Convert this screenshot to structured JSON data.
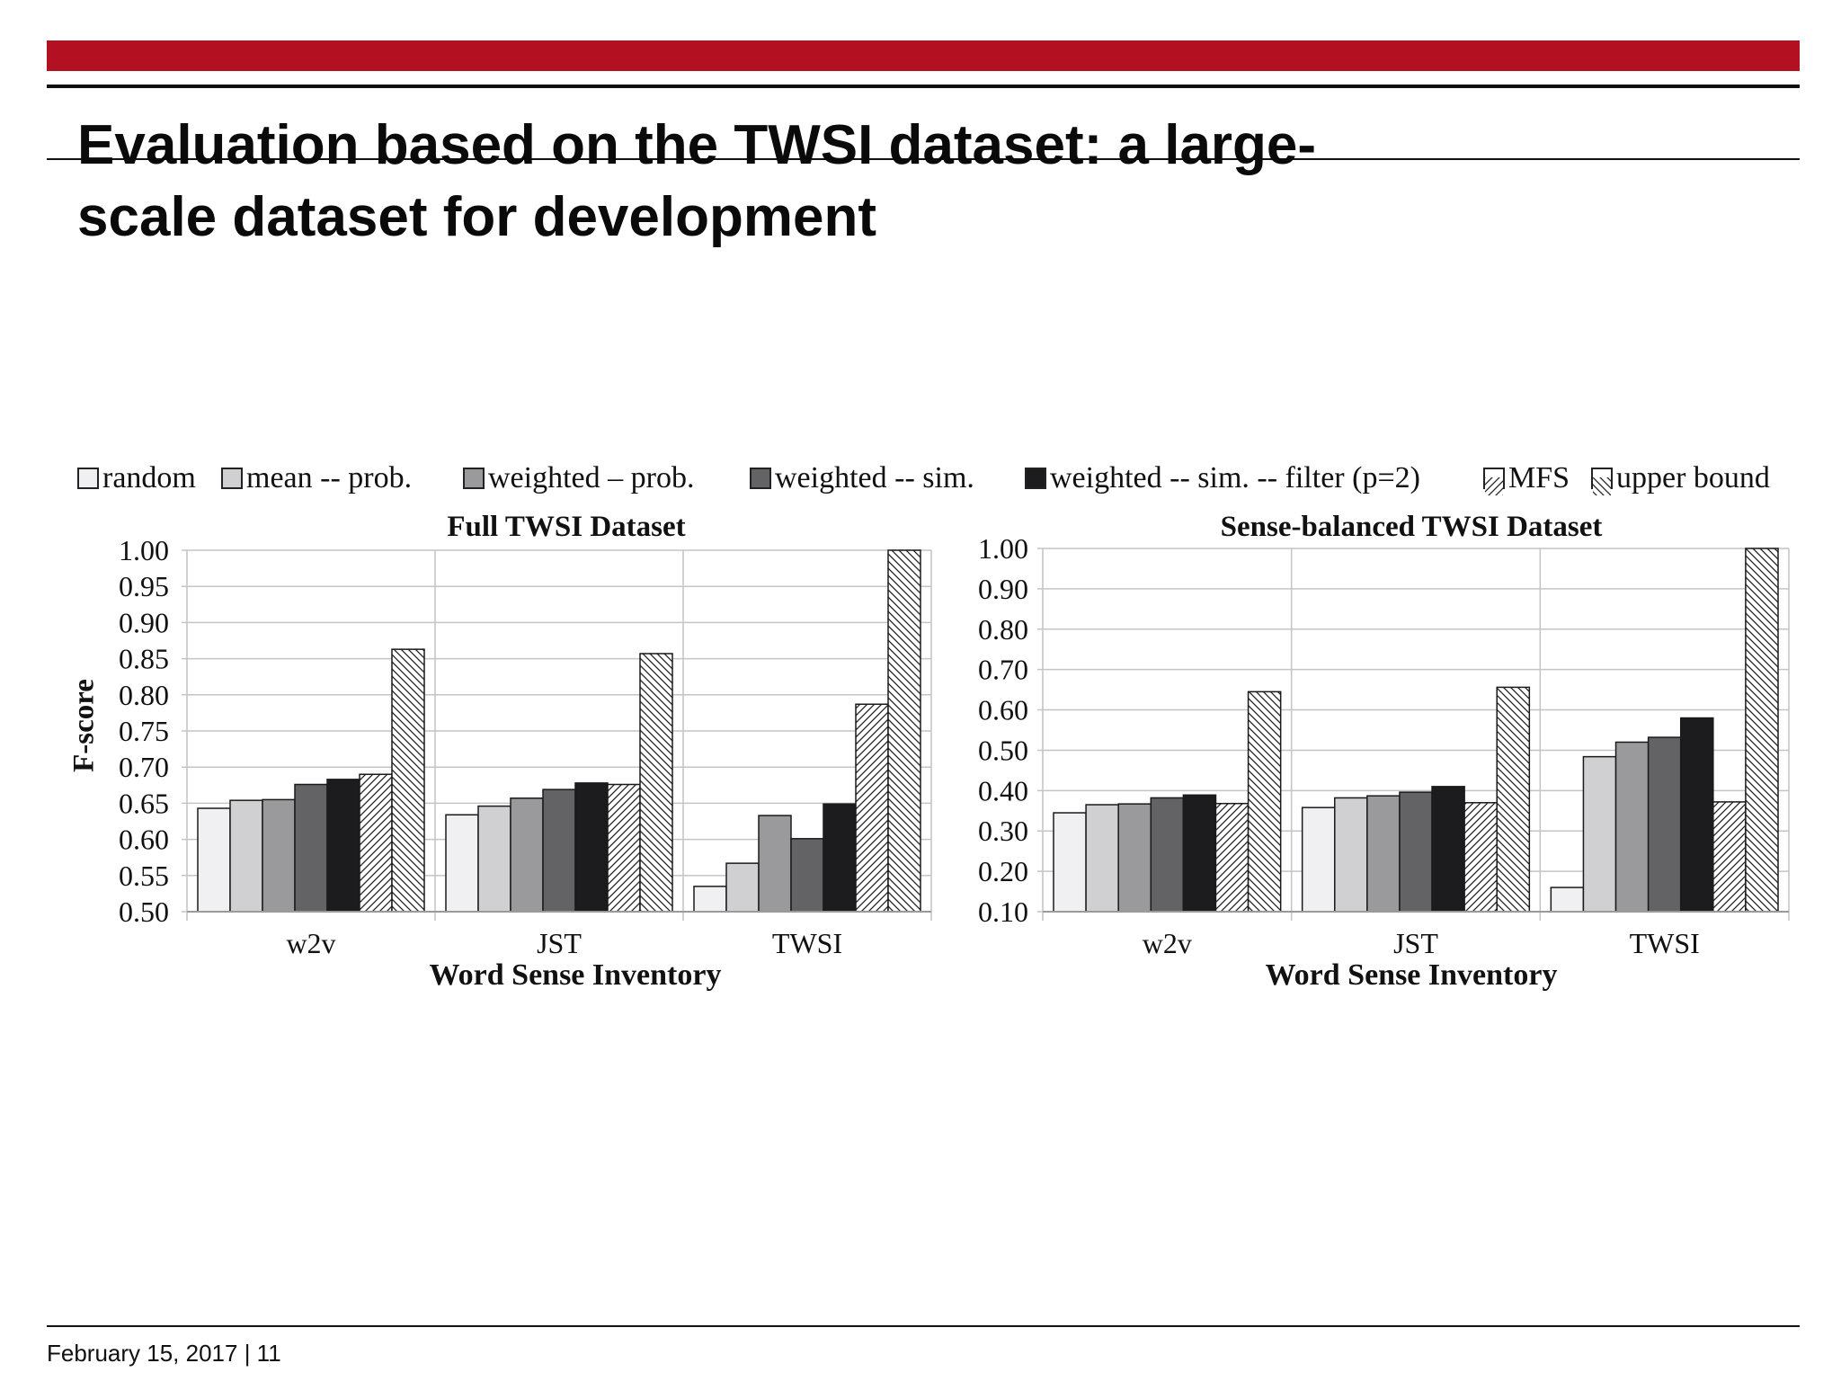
{
  "slide": {
    "title_line1": "Evaluation based on the TWSI dataset: a large-",
    "title_line2": "scale dataset for development",
    "footer": "February 15, 2017 | 11",
    "accent_color": "#b31121"
  },
  "legend": [
    {
      "label": "random",
      "fill": "#f0eff1",
      "pattern": "solid"
    },
    {
      "label": "mean -- prob.",
      "fill": "#d0d0d2",
      "pattern": "solid"
    },
    {
      "label": "weighted – prob.",
      "fill": "#9a9a9c",
      "pattern": "solid"
    },
    {
      "label": "weighted -- sim.",
      "fill": "#636366",
      "pattern": "solid"
    },
    {
      "label": "weighted -- sim. -- filter (p=2)",
      "fill": "#1c1c1e",
      "pattern": "solid"
    },
    {
      "label": "MFS",
      "fill": "#ffffff",
      "pattern": "hatch-forward"
    },
    {
      "label": "upper bound",
      "fill": "#ffffff",
      "pattern": "hatch-back"
    }
  ],
  "chart_data": [
    {
      "type": "bar",
      "title": "Full TWSI Dataset",
      "xlabel": "Word Sense Inventory",
      "ylabel": "F-score",
      "ylim": [
        0.5,
        1.0
      ],
      "yticks": [
        "1.00",
        "0.95",
        "0.90",
        "0.85",
        "0.80",
        "0.75",
        "0.70",
        "0.65",
        "0.60",
        "0.55",
        "0.50"
      ],
      "categories": [
        "w2v",
        "JST",
        "TWSI"
      ],
      "series": [
        {
          "name": "random",
          "values": [
            0.643,
            0.634,
            0.535
          ]
        },
        {
          "name": "mean -- prob.",
          "values": [
            0.654,
            0.646,
            0.567
          ]
        },
        {
          "name": "weighted – prob.",
          "values": [
            0.655,
            0.657,
            0.633
          ]
        },
        {
          "name": "weighted -- sim.",
          "values": [
            0.676,
            0.669,
            0.601
          ]
        },
        {
          "name": "weighted -- sim. -- filter (p=2)",
          "values": [
            0.683,
            0.678,
            0.649
          ]
        },
        {
          "name": "MFS",
          "values": [
            0.69,
            0.676,
            0.787
          ]
        },
        {
          "name": "upper bound",
          "values": [
            0.863,
            0.857,
            1.0
          ]
        }
      ],
      "grid": true,
      "legend_position": "top"
    },
    {
      "type": "bar",
      "title": "Sense-balanced TWSI Dataset",
      "xlabel": "Word Sense Inventory",
      "ylabel": "",
      "ylim": [
        0.1,
        1.0
      ],
      "yticks": [
        "1.00",
        "0.90",
        "0.80",
        "0.70",
        "0.60",
        "0.50",
        "0.40",
        "0.30",
        "0.20",
        "0.10"
      ],
      "categories": [
        "w2v",
        "JST",
        "TWSI"
      ],
      "series": [
        {
          "name": "random",
          "values": [
            0.345,
            0.358,
            0.16
          ]
        },
        {
          "name": "mean -- prob.",
          "values": [
            0.365,
            0.382,
            0.484
          ]
        },
        {
          "name": "weighted – prob.",
          "values": [
            0.367,
            0.387,
            0.52
          ]
        },
        {
          "name": "weighted -- sim.",
          "values": [
            0.382,
            0.396,
            0.532
          ]
        },
        {
          "name": "weighted -- sim. -- filter (p=2)",
          "values": [
            0.389,
            0.41,
            0.58
          ]
        },
        {
          "name": "MFS",
          "values": [
            0.368,
            0.37,
            0.372
          ]
        },
        {
          "name": "upper bound",
          "values": [
            0.645,
            0.656,
            1.0
          ]
        }
      ],
      "grid": true,
      "legend_position": "top"
    }
  ]
}
